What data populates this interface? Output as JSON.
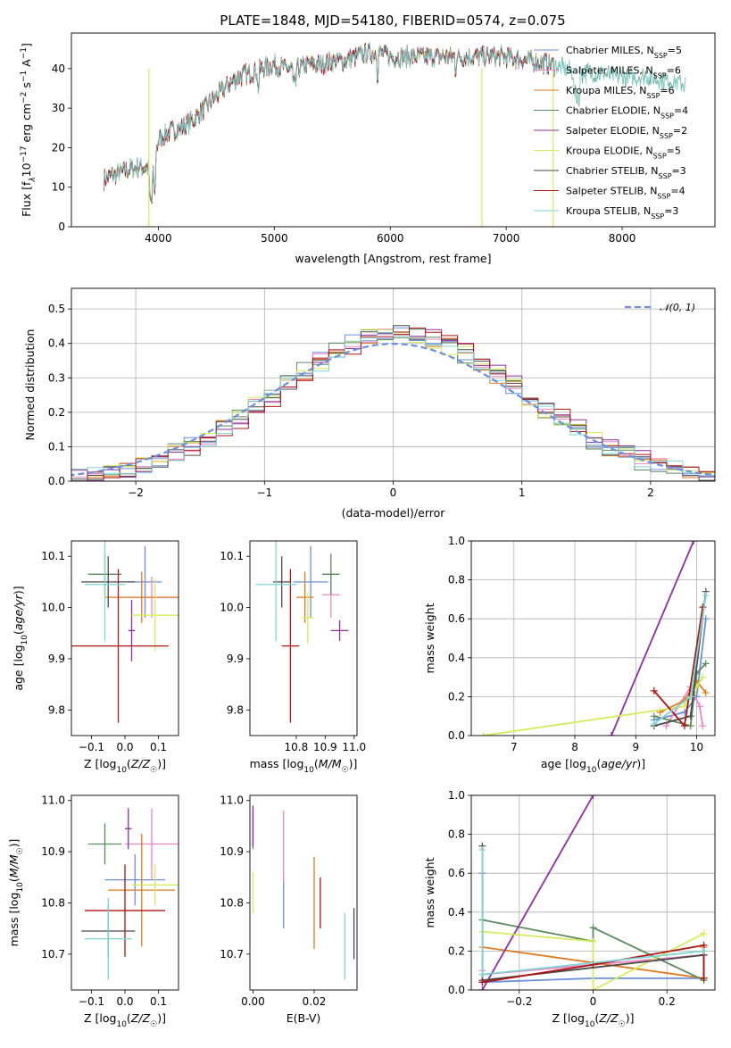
{
  "figure": {
    "title": "PLATE=1848, MJD=54180, FIBERID=0574, z=0.075"
  },
  "models": [
    {
      "name": "Chabrier MILES",
      "nssp": "5",
      "color": "#6b8fde"
    },
    {
      "name": "Salpeter MILES",
      "nssp": "6",
      "color": "#ef86c3"
    },
    {
      "name": "Kroupa MILES",
      "nssp": "6",
      "color": "#e07b20"
    },
    {
      "name": "Chabrier ELODIE",
      "nssp": "4",
      "color": "#5b8a5e"
    },
    {
      "name": "Salpeter ELODIE",
      "nssp": "2",
      "color": "#8e2fa1"
    },
    {
      "name": "Kroupa ELODIE",
      "nssp": "5",
      "color": "#d4ec5a"
    },
    {
      "name": "Chabrier STELIB",
      "nssp": "3",
      "color": "#4a4a4a"
    },
    {
      "name": "Salpeter STELIB",
      "nssp": "4",
      "color": "#b01414"
    },
    {
      "name": "Kroupa STELIB",
      "nssp": "3",
      "color": "#7ed6d6"
    }
  ],
  "chart_data": [
    {
      "id": "spectrum",
      "type": "line",
      "xlabel": "wavelength [Angstrom, rest frame]",
      "ylabel": "Flux [f_λ10^-17 erg cm^-2 s^-1 A^-1]",
      "xlim": [
        3250,
        8800
      ],
      "ylim": [
        0,
        49
      ],
      "xticks": [
        4000,
        5000,
        6000,
        7000,
        8000
      ],
      "yticks": [
        0,
        10,
        20,
        30,
        40
      ],
      "legend": "right",
      "continuum": {
        "x": [
          3530,
          3600,
          3700,
          3800,
          3900,
          3950,
          4000,
          4100,
          4200,
          4300,
          4400,
          4500,
          4600,
          4700,
          4800,
          4900,
          5000,
          5100,
          5200,
          5300,
          5400,
          5500,
          5600,
          5700,
          5800,
          5900,
          6000,
          6200,
          6400,
          6600,
          6800,
          7000,
          7200,
          7400,
          7600,
          7800,
          8000,
          8200,
          8400,
          8550
        ],
        "y": [
          12,
          13,
          14,
          15,
          15,
          13,
          22,
          24,
          25,
          27,
          30,
          33,
          36,
          38,
          39,
          40,
          41,
          40,
          40,
          41,
          41,
          42,
          42,
          43,
          44,
          44,
          43,
          43,
          43,
          43,
          43,
          43,
          42,
          41,
          39,
          39,
          38,
          38,
          37,
          36
        ]
      }
    },
    {
      "id": "residuals",
      "type": "histogram",
      "xlabel": "(data-model)/error",
      "ylabel": "Normed distribution",
      "xlim": [
        -2.5,
        2.5
      ],
      "ylim": [
        0,
        0.56
      ],
      "xticks": [
        -2,
        -1,
        0,
        1,
        2
      ],
      "yticks": [
        0.0,
        0.1,
        0.2,
        0.3,
        0.4,
        0.5
      ],
      "reference_label": "𝒩(0, 1)",
      "legend": "top-right"
    },
    {
      "id": "age-vs-Z",
      "type": "scatter",
      "xlabel": "Z [log10(Z/Z☉)]",
      "ylabel": "age [log10(age/yr)]",
      "xlim": [
        -0.16,
        0.16
      ],
      "ylim": [
        9.75,
        10.13
      ],
      "xticks": [
        -0.1,
        0.0,
        0.1
      ],
      "yticks": [
        9.8,
        9.9,
        10.0,
        10.1
      ],
      "points": [
        {
          "x": 0.06,
          "xerr": 0.05,
          "y": 10.05,
          "yerr": 0.07
        },
        {
          "x": 0.08,
          "xerr": 0.08,
          "y": 10.02,
          "yerr": 0.04
        },
        {
          "x": 0.05,
          "xerr": 0.11,
          "y": 10.02,
          "yerr": 0.05
        },
        {
          "x": -0.06,
          "xerr": 0.05,
          "y": 10.065,
          "yerr": 0.04
        },
        {
          "x": 0.02,
          "xerr": 0.01,
          "y": 9.955,
          "yerr": 0.06
        },
        {
          "x": 0.09,
          "xerr": 0.07,
          "y": 9.985,
          "yerr": 0.07
        },
        {
          "x": -0.05,
          "xerr": 0.08,
          "y": 10.05,
          "yerr": 0.05
        },
        {
          "x": -0.02,
          "xerr": 0.15,
          "y": 9.925,
          "yerr": 0.15
        },
        {
          "x": -0.06,
          "xerr": 0.06,
          "y": 10.045,
          "yerr": 0.11
        }
      ]
    },
    {
      "id": "age-vs-mass",
      "type": "scatter",
      "xlabel": "mass [log10(M/M☉)]",
      "ylabel": "",
      "xlim": [
        10.64,
        11.01
      ],
      "ylim": [
        9.75,
        10.13
      ],
      "xticks": [
        10.8,
        10.9,
        11.0
      ],
      "yticks": [
        9.8,
        9.9,
        10.0,
        10.1
      ],
      "points": [
        {
          "x": 10.85,
          "xerr": 0.06,
          "y": 10.05,
          "yerr": 0.07
        },
        {
          "x": 10.92,
          "xerr": 0.03,
          "y": 10.025,
          "yerr": 0.045
        },
        {
          "x": 10.83,
          "xerr": 0.03,
          "y": 10.02,
          "yerr": 0.05
        },
        {
          "x": 10.92,
          "xerr": 0.03,
          "y": 10.065,
          "yerr": 0.04
        },
        {
          "x": 10.95,
          "xerr": 0.03,
          "y": 9.955,
          "yerr": 0.02
        },
        {
          "x": 10.84,
          "xerr": 0.02,
          "y": 9.98,
          "yerr": 0.05
        },
        {
          "x": 10.75,
          "xerr": 0.03,
          "y": 10.05,
          "yerr": 0.05
        },
        {
          "x": 10.78,
          "xerr": 0.03,
          "y": 9.925,
          "yerr": 0.15
        },
        {
          "x": 10.73,
          "xerr": 0.07,
          "y": 10.045,
          "yerr": 0.11
        }
      ]
    },
    {
      "id": "mass-weight-vs-age",
      "type": "line",
      "xlabel": "age [log10(age/yr)]",
      "ylabel": "mass weight",
      "xlim": [
        6.3,
        10.3
      ],
      "ylim": [
        0,
        1.0
      ],
      "xticks": [
        7,
        8,
        9,
        10
      ],
      "yticks": [
        0.0,
        0.2,
        0.4,
        0.6,
        0.8,
        1.0
      ],
      "series": [
        {
          "x": [
            9.3,
            9.8,
            10.0,
            10.15
          ],
          "y": [
            0.08,
            0.12,
            0.2,
            0.6
          ]
        },
        {
          "x": [
            9.5,
            9.9,
            10.05,
            10.1
          ],
          "y": [
            0.05,
            0.25,
            0.15,
            0.05
          ]
        },
        {
          "x": [
            9.4,
            9.8,
            10.0,
            10.15
          ],
          "y": [
            0.12,
            0.18,
            0.28,
            0.22
          ]
        },
        {
          "x": [
            9.3,
            9.9,
            10.0,
            10.15
          ],
          "y": [
            0.1,
            0.05,
            0.32,
            0.37
          ]
        },
        {
          "x": [
            8.6,
            9.95
          ],
          "y": [
            0.0,
            1.0
          ]
        },
        {
          "x": [
            6.5,
            9.8,
            10.0,
            10.1
          ],
          "y": [
            0.0,
            0.15,
            0.25,
            0.3
          ]
        },
        {
          "x": [
            9.3,
            9.9,
            10.15
          ],
          "y": [
            0.05,
            0.1,
            0.74
          ]
        },
        {
          "x": [
            9.3,
            9.8,
            10.1
          ],
          "y": [
            0.23,
            0.05,
            0.66
          ]
        },
        {
          "x": [
            9.3,
            9.9,
            10.15
          ],
          "y": [
            0.06,
            0.2,
            0.72
          ]
        }
      ]
    },
    {
      "id": "mass-vs-Z",
      "type": "scatter",
      "xlabel": "Z [log10(Z/Z☉)]",
      "ylabel": "mass [log10(M/M☉)]",
      "xlim": [
        -0.16,
        0.16
      ],
      "ylim": [
        10.63,
        11.01
      ],
      "xticks": [
        -0.1,
        0.0,
        0.1
      ],
      "yticks": [
        10.7,
        10.8,
        10.9,
        11.0
      ],
      "points": [
        {
          "x": 0.03,
          "xerr": 0.09,
          "y": 10.845,
          "yerr": 0.05
        },
        {
          "x": 0.08,
          "xerr": 0.08,
          "y": 10.915,
          "yerr": 0.07
        },
        {
          "x": 0.05,
          "xerr": 0.1,
          "y": 10.825,
          "yerr": 0.11
        },
        {
          "x": -0.06,
          "xerr": 0.05,
          "y": 10.915,
          "yerr": 0.04
        },
        {
          "x": 0.01,
          "xerr": 0.01,
          "y": 10.945,
          "yerr": 0.04
        },
        {
          "x": 0.09,
          "xerr": 0.07,
          "y": 10.835,
          "yerr": 0.04
        },
        {
          "x": -0.05,
          "xerr": 0.08,
          "y": 10.745,
          "yerr": 0.05
        },
        {
          "x": 0.0,
          "xerr": 0.12,
          "y": 10.785,
          "yerr": 0.09
        },
        {
          "x": -0.05,
          "xerr": 0.07,
          "y": 10.73,
          "yerr": 0.08
        }
      ]
    },
    {
      "id": "mass-vs-ebv",
      "type": "scatter",
      "xlabel": "E(B-V)",
      "ylabel": "",
      "xlim": [
        -0.001,
        0.034
      ],
      "ylim": [
        10.63,
        11.01
      ],
      "xticks": [
        0.0,
        0.02
      ],
      "yticks": [
        10.7,
        10.8,
        10.9,
        11.0
      ],
      "points": [
        {
          "x": 0.01,
          "y": 10.8,
          "yerr": 0.05
        },
        {
          "x": 0.01,
          "y": 10.91,
          "yerr": 0.07
        },
        {
          "x": 0.02,
          "y": 10.8,
          "yerr": 0.09
        },
        {
          "x": 0.0,
          "y": 10.945,
          "yerr": 0.04
        },
        {
          "x": 0.0,
          "y": 10.95,
          "yerr": 0.04
        },
        {
          "x": 0.0,
          "y": 10.82,
          "yerr": 0.04
        },
        {
          "x": 0.033,
          "y": 10.74,
          "yerr": 0.05
        },
        {
          "x": 0.022,
          "y": 10.8,
          "yerr": 0.05
        },
        {
          "x": 0.03,
          "y": 10.715,
          "yerr": 0.065
        }
      ]
    },
    {
      "id": "mass-weight-vs-Z",
      "type": "line",
      "xlabel": "Z [log10(Z/Z☉)]",
      "ylabel": "mass weight",
      "xlim": [
        -0.33,
        0.33
      ],
      "ylim": [
        0,
        1.0
      ],
      "xticks": [
        -0.2,
        0.0,
        0.2
      ],
      "yticks": [
        0.0,
        0.2,
        0.4,
        0.6,
        0.8,
        1.0
      ],
      "series": [
        {
          "x": [
            -0.3,
            -0.3,
            0.0,
            0.3
          ],
          "y": [
            0.6,
            0.04,
            0.06,
            0.06
          ]
        },
        {
          "x": [
            -0.3,
            -0.3,
            0.3
          ],
          "y": [
            0.1,
            0.08,
            0.18
          ]
        },
        {
          "x": [
            -0.3,
            0.3,
            0.3
          ],
          "y": [
            0.22,
            0.06,
            0.22
          ]
        },
        {
          "x": [
            -0.3,
            0.0,
            0.0,
            0.3,
            0.3
          ],
          "y": [
            0.36,
            0.25,
            0.32,
            0.05,
            0.18
          ]
        },
        {
          "x": [
            -0.3,
            0.0
          ],
          "y": [
            0.0,
            1.0
          ]
        },
        {
          "x": [
            -0.3,
            0.0,
            0.0,
            0.3
          ],
          "y": [
            0.3,
            0.25,
            0.0,
            0.29
          ]
        },
        {
          "x": [
            -0.3,
            -0.3,
            0.3,
            0.3
          ],
          "y": [
            0.74,
            0.05,
            0.18,
            0.06
          ]
        },
        {
          "x": [
            -0.3,
            0.0,
            0.3,
            0.3
          ],
          "y": [
            0.04,
            0.13,
            0.23,
            0.06
          ]
        },
        {
          "x": [
            -0.3,
            -0.3,
            0.3
          ],
          "y": [
            0.72,
            0.08,
            0.2
          ]
        }
      ]
    }
  ]
}
